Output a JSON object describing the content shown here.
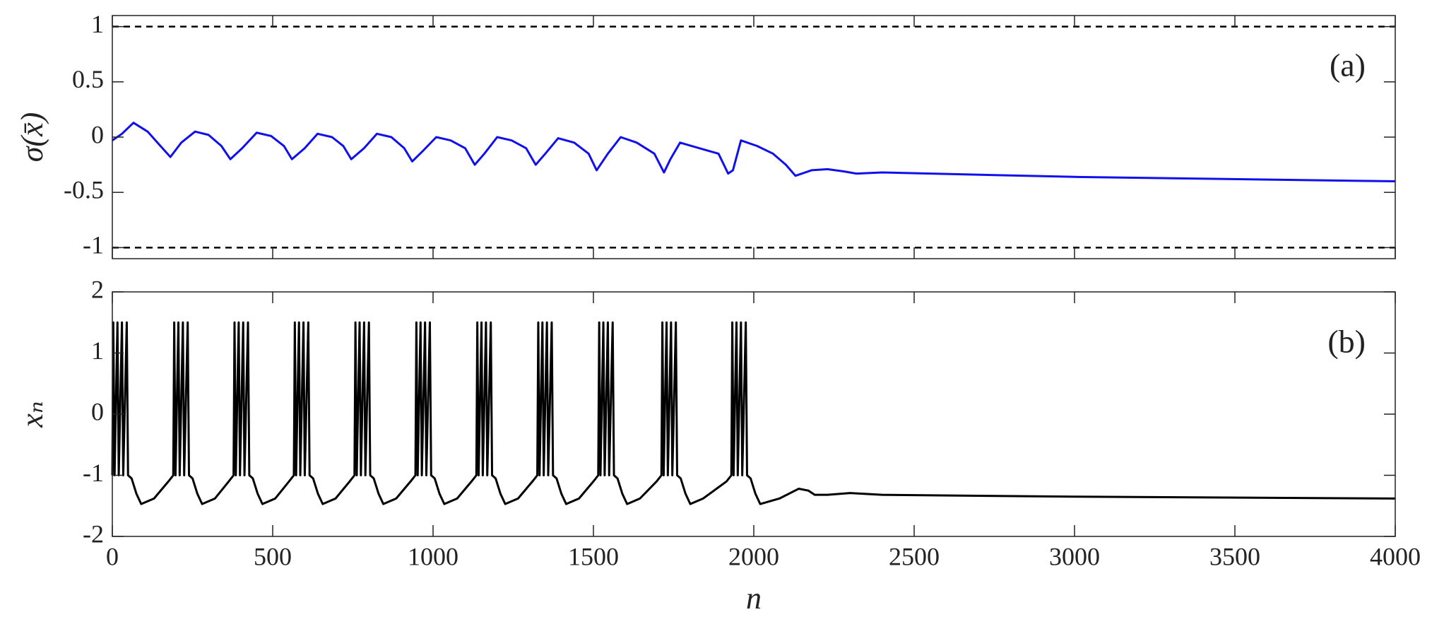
{
  "chart_data": [
    {
      "type": "line",
      "ylabel": "σ(x̄)",
      "annotation": "(a)",
      "xlim": [
        0,
        4000
      ],
      "xticks": [
        0,
        500,
        1000,
        1500,
        2000,
        2500,
        3000,
        3500,
        4000
      ],
      "ylim": [
        -1.1,
        1.1
      ],
      "yticks": [
        -1,
        -0.5,
        0,
        0.5,
        1
      ],
      "hlines": [
        1,
        -1
      ],
      "series": [
        {
          "color": "#1010ee",
          "x": [
            0,
            30,
            66,
            110,
            150,
            181,
            215,
            258,
            300,
            340,
            368,
            405,
            450,
            495,
            535,
            560,
            600,
            640,
            685,
            720,
            745,
            785,
            825,
            870,
            910,
            935,
            970,
            1010,
            1055,
            1100,
            1130,
            1160,
            1200,
            1245,
            1290,
            1320,
            1350,
            1390,
            1440,
            1485,
            1510,
            1545,
            1585,
            1635,
            1690,
            1720,
            1740,
            1770,
            1830,
            1890,
            1920,
            1935,
            1960,
            2010,
            2060,
            2100,
            2130,
            2180,
            2230,
            2280,
            2320,
            2400,
            3000,
            4000
          ],
          "values": [
            -0.03,
            0.03,
            0.13,
            0.05,
            -0.08,
            -0.18,
            -0.05,
            0.05,
            0.02,
            -0.08,
            -0.2,
            -0.1,
            0.04,
            0.01,
            -0.08,
            -0.2,
            -0.1,
            0.03,
            0.0,
            -0.08,
            -0.2,
            -0.1,
            0.03,
            0.0,
            -0.1,
            -0.22,
            -0.12,
            0.0,
            -0.03,
            -0.1,
            -0.25,
            -0.15,
            0.0,
            -0.03,
            -0.1,
            -0.25,
            -0.15,
            -0.01,
            -0.05,
            -0.15,
            -0.3,
            -0.15,
            0.0,
            -0.05,
            -0.15,
            -0.32,
            -0.2,
            -0.05,
            -0.1,
            -0.15,
            -0.33,
            -0.3,
            -0.03,
            -0.08,
            -0.15,
            -0.25,
            -0.35,
            -0.3,
            -0.29,
            -0.31,
            -0.33,
            -0.32,
            -0.36,
            -0.4
          ]
        }
      ]
    },
    {
      "type": "line",
      "ylabel": "xₙ",
      "xlabel": "n",
      "annotation": "(b)",
      "xlim": [
        0,
        4000
      ],
      "xticks": [
        0,
        500,
        1000,
        1500,
        2000,
        2500,
        3000,
        3500,
        4000
      ],
      "ylim": [
        -2,
        2
      ],
      "yticks": [
        -2,
        -1,
        0,
        1,
        2
      ],
      "series": [
        {
          "color": "#000000",
          "x": [
            0,
            3,
            7,
            16,
            20,
            30,
            34,
            45,
            49,
            60,
            75,
            90,
            130,
            175,
            190,
            193,
            197,
            206,
            210,
            220,
            224,
            235,
            239,
            250,
            265,
            280,
            320,
            363,
            378,
            381,
            385,
            394,
            398,
            408,
            412,
            423,
            427,
            438,
            453,
            468,
            508,
            551,
            566,
            569,
            573,
            582,
            586,
            596,
            600,
            611,
            615,
            626,
            641,
            656,
            696,
            740,
            755,
            758,
            762,
            771,
            775,
            785,
            789,
            800,
            804,
            815,
            830,
            845,
            885,
            930,
            945,
            948,
            952,
            961,
            965,
            975,
            979,
            990,
            994,
            1005,
            1020,
            1035,
            1075,
            1120,
            1135,
            1138,
            1142,
            1151,
            1155,
            1165,
            1169,
            1180,
            1184,
            1195,
            1210,
            1225,
            1265,
            1310,
            1325,
            1328,
            1332,
            1341,
            1345,
            1355,
            1359,
            1370,
            1374,
            1385,
            1400,
            1415,
            1455,
            1500,
            1515,
            1518,
            1522,
            1531,
            1535,
            1545,
            1549,
            1560,
            1564,
            1575,
            1590,
            1605,
            1645,
            1697,
            1712,
            1715,
            1719,
            1728,
            1732,
            1742,
            1746,
            1757,
            1761,
            1772,
            1787,
            1802,
            1842,
            1915,
            1930,
            1933,
            1937,
            1946,
            1950,
            1960,
            1964,
            1975,
            1979,
            1990,
            2005,
            2020,
            2080,
            2140,
            2170,
            2190,
            2230,
            2300,
            2400,
            3000,
            4000
          ],
          "values": [
            -1,
            1.5,
            -1,
            1.5,
            -1,
            1.5,
            -1,
            1.5,
            -1,
            -1.05,
            -1.3,
            -1.47,
            -1.38,
            -1.1,
            -1,
            1.5,
            -1,
            1.5,
            -1,
            1.5,
            -1,
            1.5,
            -1,
            -1.05,
            -1.3,
            -1.47,
            -1.38,
            -1.1,
            -1,
            1.5,
            -1,
            1.5,
            -1,
            1.5,
            -1,
            1.5,
            -1,
            -1.05,
            -1.3,
            -1.47,
            -1.38,
            -1.1,
            -1,
            1.5,
            -1,
            1.5,
            -1,
            1.5,
            -1,
            1.5,
            -1,
            -1.05,
            -1.3,
            -1.47,
            -1.38,
            -1.1,
            -1,
            1.5,
            -1,
            1.5,
            -1,
            1.5,
            -1,
            1.5,
            -1,
            -1.05,
            -1.3,
            -1.47,
            -1.38,
            -1.1,
            -1,
            1.5,
            -1,
            1.5,
            -1,
            1.5,
            -1,
            1.5,
            -1,
            -1.05,
            -1.3,
            -1.47,
            -1.38,
            -1.1,
            -1,
            1.5,
            -1,
            1.5,
            -1,
            1.5,
            -1,
            1.5,
            -1,
            -1.05,
            -1.3,
            -1.47,
            -1.38,
            -1.1,
            -1,
            1.5,
            -1,
            1.5,
            -1,
            1.5,
            -1,
            1.5,
            -1,
            -1.05,
            -1.3,
            -1.47,
            -1.38,
            -1.1,
            -1,
            1.5,
            -1,
            1.5,
            -1,
            1.5,
            -1,
            1.5,
            -1,
            -1.05,
            -1.3,
            -1.47,
            -1.38,
            -1.1,
            -1,
            1.5,
            -1,
            1.5,
            -1,
            1.5,
            -1,
            1.5,
            -1,
            -1.05,
            -1.3,
            -1.47,
            -1.38,
            -1.1,
            -1,
            1.5,
            -1,
            1.5,
            -1,
            1.5,
            -1,
            1.5,
            -1,
            -1.05,
            -1.3,
            -1.47,
            -1.38,
            -1.22,
            -1.25,
            -1.32,
            -1.32,
            -1.29,
            -1.32,
            -1.35,
            -1.38
          ]
        }
      ]
    }
  ]
}
